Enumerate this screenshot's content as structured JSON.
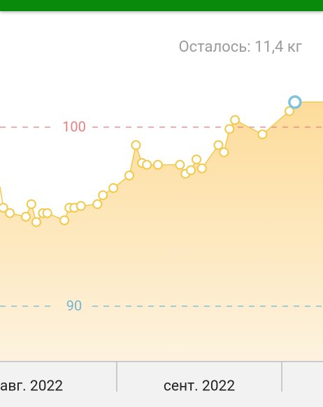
{
  "chart_data": {
    "type": "area",
    "remaining": "Осталось: 11,4 кг",
    "x": [
      10.4,
      11.6,
      14.5,
      15.5,
      16.4,
      17.6,
      18.4,
      21.5,
      22.4,
      23.3,
      24.5,
      27.5,
      28.5,
      30.4,
      33.3,
      34.5,
      35.6,
      36.5,
      38.5,
      42.5,
      43.5,
      44.5,
      45.5,
      46.5,
      49.5,
      50.5,
      51.5,
      52.5,
      57.5,
      62.4,
      63.4
    ],
    "values": [
      95.5,
      95.2,
      95.0,
      95.7,
      94.7,
      95.2,
      95.2,
      94.8,
      95.5,
      95.5,
      95.6,
      95.7,
      96.2,
      96.6,
      97.3,
      99.0,
      98.0,
      97.9,
      97.9,
      97.9,
      97.4,
      97.6,
      98.2,
      97.7,
      99.0,
      98.6,
      99.9,
      100.4,
      99.6,
      100.9,
      101.4
    ],
    "highlight_index": 30,
    "color": "#f3c94b",
    "xlim": [
      9.8,
      68.5
    ],
    "ylim": [
      86.91,
      106.48
    ],
    "reference_lines": [
      {
        "value": 100,
        "color": "#e57f7f"
      },
      {
        "value": 90,
        "color": "#74b6d4"
      }
    ],
    "month_labels": [
      "авг. 2022",
      "сент. 2022"
    ]
  }
}
